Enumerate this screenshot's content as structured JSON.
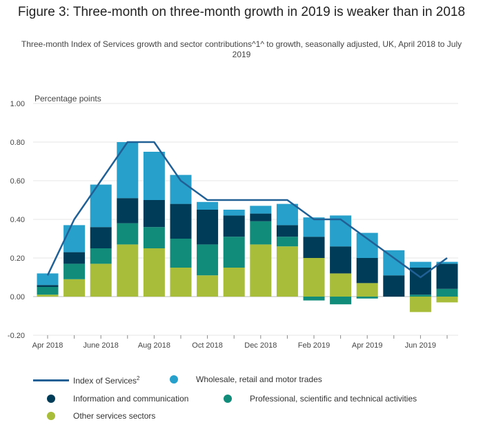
{
  "title": "Figure 3: Three-month on three-month growth in 2019 is weaker than in 2018",
  "subtitle": "Three-month Index of Services growth and sector contributions^1^ to growth, seasonally adjusted, UK, April 2018 to July 2019",
  "chart_data": {
    "type": "bar",
    "stacked": true,
    "ylabel": "Percentage points",
    "ylim": [
      -0.2,
      1.0
    ],
    "yticks": [
      "1.00",
      "0.80",
      "0.60",
      "0.40",
      "0.20",
      "0.00",
      "-0.20"
    ],
    "ytick_values": [
      1.0,
      0.8,
      0.6,
      0.4,
      0.2,
      0.0,
      -0.2
    ],
    "categories": [
      "Apr 2018",
      "May 2018",
      "Jun 2018",
      "Jul 2018",
      "Aug 2018",
      "Sep 2018",
      "Oct 2018",
      "Nov 2018",
      "Dec 2018",
      "Jan 2019",
      "Feb 2019",
      "Mar 2019",
      "Apr 2019",
      "May 2019",
      "Jun 2019",
      "Jul 2019"
    ],
    "xtick_labels": [
      {
        "index": 0,
        "label": "Apr 2018"
      },
      {
        "index": 2,
        "label": "June 2018"
      },
      {
        "index": 4,
        "label": "Aug 2018"
      },
      {
        "index": 6,
        "label": "Oct 2018"
      },
      {
        "index": 8,
        "label": "Dec 2018"
      },
      {
        "index": 10,
        "label": "Feb 2019"
      },
      {
        "index": 12,
        "label": "Apr 2019"
      },
      {
        "index": 14,
        "label": "Jun 2019"
      }
    ],
    "grid": true,
    "legend_position": "bottom",
    "series": [
      {
        "name": "Other services sectors",
        "color": "#a8bd3a",
        "values": [
          0.01,
          0.09,
          0.17,
          0.27,
          0.25,
          0.15,
          0.11,
          0.15,
          0.27,
          0.26,
          0.2,
          0.12,
          0.07,
          0.0,
          -0.08,
          -0.03
        ]
      },
      {
        "name": "Professional, scientific and technical activities",
        "color": "#118c7b",
        "values": [
          0.04,
          0.08,
          0.08,
          0.11,
          0.11,
          0.15,
          0.16,
          0.16,
          0.12,
          0.05,
          -0.02,
          -0.04,
          -0.01,
          0.0,
          0.01,
          0.04
        ]
      },
      {
        "name": "Information and communication",
        "color": "#003c57",
        "values": [
          0.01,
          0.06,
          0.11,
          0.13,
          0.14,
          0.18,
          0.18,
          0.11,
          0.04,
          0.06,
          0.11,
          0.14,
          0.13,
          0.11,
          0.14,
          0.13
        ]
      },
      {
        "name": "Wholesale, retail and motor trades",
        "color": "#27a0cc",
        "values": [
          0.06,
          0.14,
          0.22,
          0.29,
          0.25,
          0.15,
          0.04,
          0.03,
          0.04,
          0.11,
          0.1,
          0.16,
          0.13,
          0.13,
          0.03,
          0.01
        ]
      }
    ],
    "line": {
      "name": "Index of Services",
      "name_sup": "2",
      "color": "#206095",
      "values": [
        0.11,
        0.4,
        0.6,
        0.8,
        0.8,
        0.6,
        0.5,
        0.5,
        0.5,
        0.5,
        0.4,
        0.4,
        0.3,
        0.2,
        0.1,
        0.2
      ]
    }
  }
}
